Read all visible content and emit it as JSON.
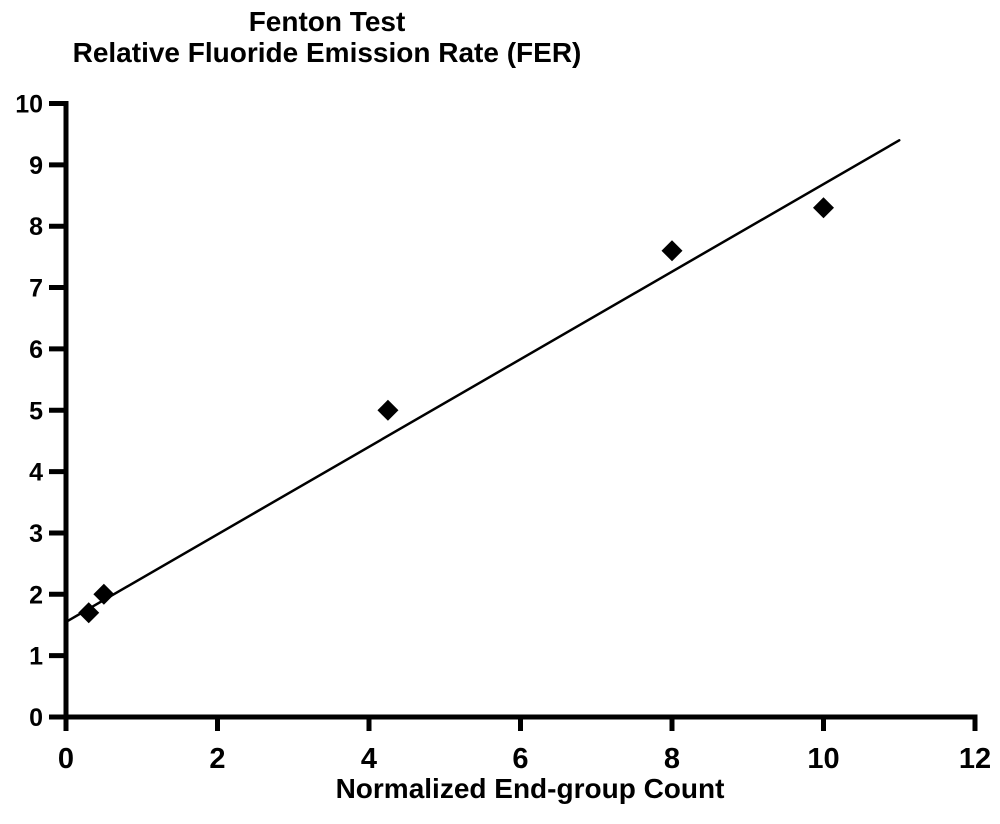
{
  "chart_data": {
    "type": "scatter",
    "title": "Fenton Test",
    "subtitle": "Relative Fluoride Emission Rate (FER)",
    "xlabel": "Normalized End-group Count",
    "ylabel": "",
    "xlim": [
      0,
      12
    ],
    "ylim": [
      0,
      10
    ],
    "xticks": [
      0,
      2,
      4,
      6,
      8,
      10,
      12
    ],
    "yticks": [
      0,
      1,
      2,
      3,
      4,
      5,
      6,
      7,
      8,
      9,
      10
    ],
    "grid": false,
    "legend": "none",
    "marker": "diamond",
    "colors": {
      "foreground": "#000000",
      "background": "#ffffff"
    },
    "series": [
      {
        "name": "Relative Fluoride Emission Rate",
        "points": [
          {
            "x": 0.3,
            "y": 1.7
          },
          {
            "x": 0.5,
            "y": 2.0
          },
          {
            "x": 4.25,
            "y": 5.0
          },
          {
            "x": 8.0,
            "y": 7.6
          },
          {
            "x": 10.0,
            "y": 8.3
          }
        ]
      }
    ],
    "trendline": {
      "x1": 0,
      "y1": 1.55,
      "x2": 11.0,
      "y2": 9.4
    }
  }
}
